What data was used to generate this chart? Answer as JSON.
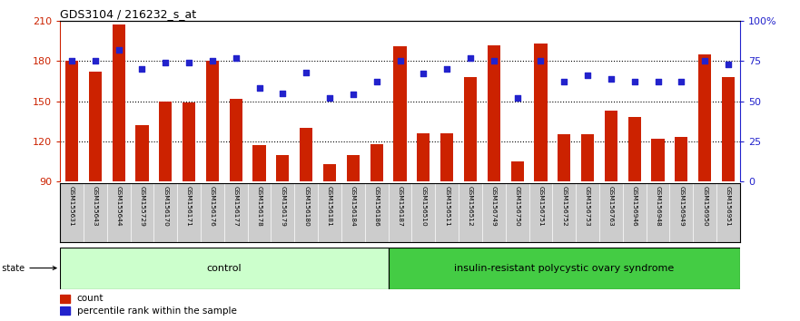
{
  "title": "GDS3104 / 216232_s_at",
  "samples": [
    "GSM155631",
    "GSM155643",
    "GSM155644",
    "GSM155729",
    "GSM156170",
    "GSM156171",
    "GSM156176",
    "GSM156177",
    "GSM156178",
    "GSM156179",
    "GSM156180",
    "GSM156181",
    "GSM156184",
    "GSM156186",
    "GSM156187",
    "GSM156510",
    "GSM156511",
    "GSM156512",
    "GSM156749",
    "GSM156750",
    "GSM156751",
    "GSM156752",
    "GSM156753",
    "GSM156763",
    "GSM156946",
    "GSM156948",
    "GSM156949",
    "GSM156950",
    "GSM156951"
  ],
  "bar_values": [
    180,
    172,
    207,
    132,
    150,
    149,
    180,
    152,
    117,
    110,
    130,
    103,
    110,
    118,
    191,
    126,
    126,
    168,
    192,
    105,
    193,
    125,
    125,
    143,
    138,
    122,
    123,
    185,
    168
  ],
  "percentile_values_pct": [
    75,
    75,
    82,
    70,
    74,
    74,
    75,
    77,
    58,
    55,
    68,
    52,
    54,
    62,
    75,
    67,
    70,
    77,
    75,
    52,
    75,
    62,
    66,
    64,
    62,
    62,
    62,
    75,
    73
  ],
  "control_count": 14,
  "ylim_left": [
    90,
    210
  ],
  "bar_color": "#cc2200",
  "dot_color": "#2222cc",
  "control_label": "control",
  "disease_label": "insulin-resistant polycystic ovary syndrome",
  "control_color": "#ccffcc",
  "disease_color": "#44cc44",
  "legend_count": "count",
  "legend_percentile": "percentile rank within the sample",
  "label_bg_color": "#cccccc",
  "bar_bottom": 90,
  "yticks_left": [
    90,
    120,
    150,
    180,
    210
  ],
  "yticks_right_pct": [
    0,
    25,
    50,
    75,
    100
  ],
  "dotted_lines": [
    120,
    150,
    180
  ]
}
